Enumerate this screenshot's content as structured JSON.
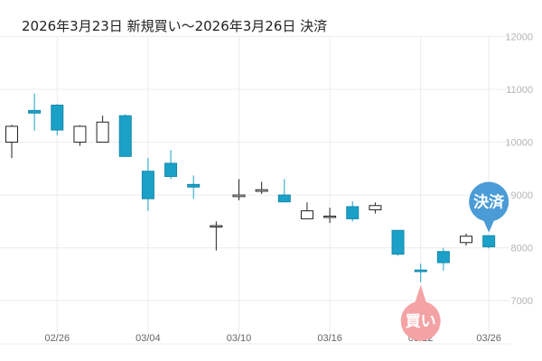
{
  "chart_data": {
    "type": "candlestick",
    "title": "2026年3月23日 新規買い〜2026年3月26日 決済",
    "ylim": [
      6200,
      12400
    ],
    "yticks": [
      7000,
      8000,
      9000,
      10000,
      11000,
      12000
    ],
    "ytick_labels": [
      "7000",
      "8000",
      "9000",
      "10000",
      "11000",
      "12000"
    ],
    "x_tick_labels": [
      {
        "label": "02/26",
        "index": 2
      },
      {
        "label": "03/04",
        "index": 6
      },
      {
        "label": "03/10",
        "index": 10
      },
      {
        "label": "03/16",
        "index": 14
      },
      {
        "label": "03/22",
        "index": 18
      },
      {
        "label": "03/26",
        "index": 21
      }
    ],
    "grid": true,
    "colors": {
      "up": "#ffffff",
      "up_border": "#222222",
      "down": "#1ba1c8",
      "down_border": "#1589ab",
      "buy_marker": "#f4a3a5",
      "sell_marker": "#4a9bd6",
      "grid": "#ececec"
    },
    "candles": [
      {
        "open": 10000,
        "high": 10330,
        "low": 9700,
        "close": 10300
      },
      {
        "open": 10600,
        "high": 10920,
        "low": 10220,
        "close": 10550
      },
      {
        "open": 10700,
        "high": 10720,
        "low": 10130,
        "close": 10230
      },
      {
        "open": 10000,
        "high": 10320,
        "low": 9930,
        "close": 10300
      },
      {
        "open": 10000,
        "high": 10500,
        "low": 10000,
        "close": 10380
      },
      {
        "open": 10500,
        "high": 10530,
        "low": 9730,
        "close": 9730
      },
      {
        "open": 9450,
        "high": 9700,
        "low": 8700,
        "close": 8930
      },
      {
        "open": 9600,
        "high": 9850,
        "low": 9300,
        "close": 9350
      },
      {
        "open": 9200,
        "high": 9370,
        "low": 8930,
        "close": 9150
      },
      {
        "open": 8400,
        "high": 8500,
        "low": 7950,
        "close": 8420
      },
      {
        "open": 8970,
        "high": 9300,
        "low": 8900,
        "close": 9000
      },
      {
        "open": 9070,
        "high": 9250,
        "low": 9020,
        "close": 9100
      },
      {
        "open": 9000,
        "high": 9300,
        "low": 8880,
        "close": 8870
      },
      {
        "open": 8550,
        "high": 8860,
        "low": 8550,
        "close": 8700
      },
      {
        "open": 8600,
        "high": 8760,
        "low": 8470,
        "close": 8600
      },
      {
        "open": 8780,
        "high": 8880,
        "low": 8500,
        "close": 8550
      },
      {
        "open": 8720,
        "high": 8860,
        "low": 8650,
        "close": 8800
      },
      {
        "open": 8330,
        "high": 8330,
        "low": 7850,
        "close": 7880
      },
      {
        "open": 7580,
        "high": 7700,
        "low": 7350,
        "close": 7550
      },
      {
        "open": 7930,
        "high": 8000,
        "low": 7570,
        "close": 7720
      },
      {
        "open": 8100,
        "high": 8270,
        "low": 8040,
        "close": 8220
      },
      {
        "open": 8230,
        "high": 8240,
        "low": 7990,
        "close": 8020
      }
    ],
    "markers": [
      {
        "label": "買い",
        "index": 18,
        "position": "below"
      },
      {
        "label": "決済",
        "index": 21,
        "position": "above"
      }
    ]
  }
}
